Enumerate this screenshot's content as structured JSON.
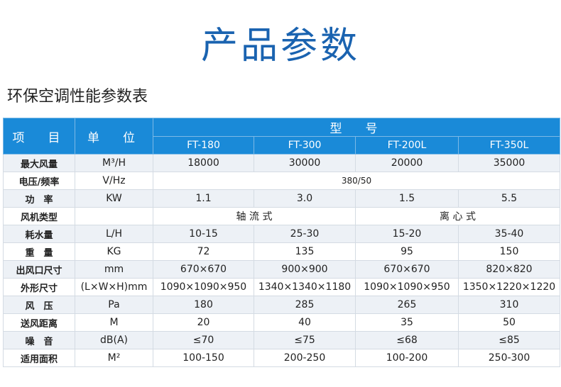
{
  "title": "产品参数",
  "subtitle": "环保空调性能参数表",
  "header": {
    "item": "项　目",
    "unit": "单　位",
    "model": "型　号",
    "models": [
      "FT-180",
      "FT-300",
      "FT-200L",
      "FT-350L"
    ]
  },
  "rows": [
    {
      "name": "最大风量",
      "unit": "M³/H",
      "values": [
        "18000",
        "30000",
        "20000",
        "35000"
      ]
    },
    {
      "name": "电压/频率",
      "unit": "V/Hz",
      "merged": "380/50"
    },
    {
      "name": "功　率",
      "unit": "KW",
      "values": [
        "1.1",
        "3.0",
        "1.5",
        "5.5"
      ]
    },
    {
      "name": "风机类型",
      "unit": "",
      "pair": [
        "轴 流 式",
        "离 心 式"
      ]
    },
    {
      "name": "耗水量",
      "unit": "L/H",
      "values": [
        "10-15",
        "25-30",
        "15-20",
        "35-40"
      ]
    },
    {
      "name": "重　量",
      "unit": "KG",
      "values": [
        "72",
        "135",
        "95",
        "150"
      ]
    },
    {
      "name": "出风口尺寸",
      "unit": "mm",
      "values": [
        "670×670",
        "900×900",
        "670×670",
        "820×820"
      ]
    },
    {
      "name": "外形尺寸",
      "unit": "(L×W×H)mm",
      "values": [
        "1090×1090×950",
        "1340×1340×1180",
        "1090×1090×950",
        "1350×1220×1220"
      ]
    },
    {
      "name": "风　压",
      "unit": "Pa",
      "values": [
        "180",
        "285",
        "265",
        "310"
      ]
    },
    {
      "name": "送风距离",
      "unit": "M",
      "values": [
        "20",
        "40",
        "35",
        "50"
      ]
    },
    {
      "name": "噪　音",
      "unit": "dB(A)",
      "values": [
        "≤70",
        "≤75",
        "≤68",
        "≤85"
      ]
    },
    {
      "name": "适用面积",
      "unit": "M²",
      "values": [
        "100-150",
        "200-250",
        "100-200",
        "250-300"
      ]
    }
  ]
}
